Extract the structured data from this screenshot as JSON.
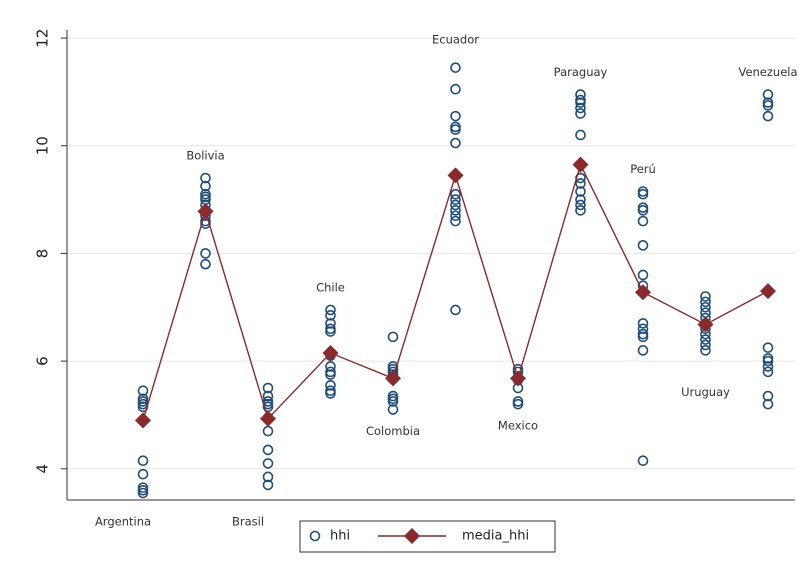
{
  "chart_data": {
    "type": "strip",
    "categories": [
      "Argentina",
      "Bolivia",
      "Brasil",
      "Chile",
      "Colombia",
      "Ecuador",
      "Mexico",
      "Paraguay",
      "Perú",
      "Uruguay",
      "Venezuela"
    ],
    "series": [
      {
        "name": "hhi",
        "type": "scatter",
        "color": "#1f4e79",
        "values": [
          [
            5.45,
            5.3,
            5.25,
            5.2,
            5.15,
            4.15,
            3.9,
            3.65,
            3.6,
            3.55
          ],
          [
            9.4,
            9.25,
            9.1,
            9.05,
            9.0,
            8.9,
            8.8,
            8.7,
            8.6,
            8.55,
            8.0,
            7.8
          ],
          [
            5.5,
            5.35,
            5.25,
            5.2,
            5.15,
            4.95,
            4.7,
            4.35,
            4.1,
            3.85,
            3.7
          ],
          [
            6.95,
            6.85,
            6.7,
            6.6,
            6.55,
            6.1,
            5.9,
            5.8,
            5.75,
            5.55,
            5.45,
            5.4
          ],
          [
            6.45,
            5.9,
            5.85,
            5.8,
            5.75,
            5.7,
            5.35,
            5.3,
            5.25,
            5.1
          ],
          [
            11.45,
            11.05,
            10.55,
            10.35,
            10.3,
            10.05,
            9.1,
            9.0,
            8.9,
            8.8,
            8.7,
            8.6,
            6.95
          ],
          [
            5.85,
            5.8,
            5.7,
            5.65,
            5.5,
            5.25,
            5.2
          ],
          [
            10.95,
            10.85,
            10.8,
            10.7,
            10.6,
            10.2,
            9.4,
            9.3,
            9.15,
            9.0,
            8.9,
            8.8
          ],
          [
            9.15,
            9.1,
            8.85,
            8.8,
            8.6,
            8.15,
            7.6,
            7.4,
            6.7,
            6.6,
            6.5,
            6.45,
            6.2,
            4.15
          ],
          [
            7.2,
            7.1,
            7.0,
            6.9,
            6.8,
            6.7,
            6.6,
            6.5,
            6.4,
            6.3,
            6.2
          ],
          [
            10.95,
            10.8,
            10.75,
            10.55,
            6.25,
            6.05,
            6.0,
            5.9,
            5.8,
            5.35,
            5.2
          ]
        ]
      },
      {
        "name": "media_hhi",
        "type": "line",
        "color": "#8b2a2a",
        "values": [
          4.9,
          8.78,
          4.93,
          6.15,
          5.68,
          9.45,
          5.68,
          9.65,
          7.28,
          6.68,
          7.3
        ]
      }
    ],
    "ylim": [
      3.42,
      12.15
    ],
    "yticks": [
      4,
      6,
      8,
      10,
      12
    ],
    "grid": true
  }
}
